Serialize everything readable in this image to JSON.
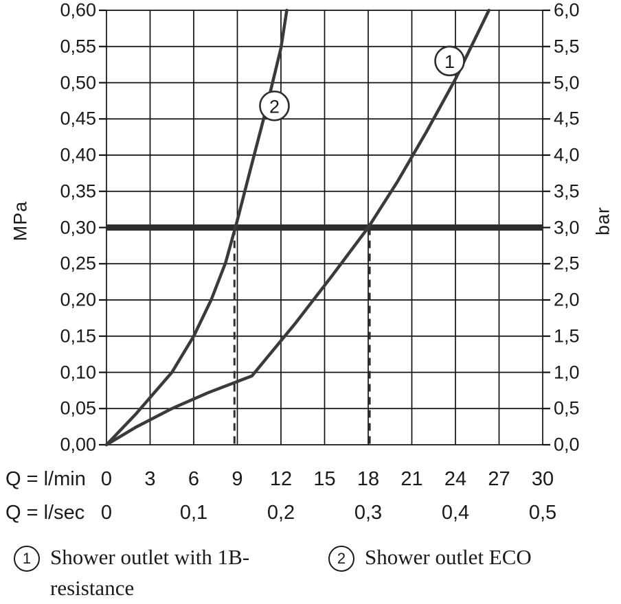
{
  "chart_data": {
    "type": "line",
    "background": "#ffffff",
    "grid_color": "#111111",
    "line_color": "#3a3a3a",
    "reference_color": "#2e2e2e",
    "x_axis": {
      "label_lmin": "Q = l/min",
      "ticks_lmin": [
        0,
        3,
        6,
        9,
        12,
        15,
        18,
        21,
        24,
        27,
        30
      ],
      "label_lsec": "Q = l/sec",
      "ticks_lsec": [
        "0",
        "0,1",
        "0,2",
        "0,3",
        "0,4",
        "0,5"
      ],
      "lsec_positions": [
        0,
        6,
        12,
        18,
        24,
        30
      ],
      "range": [
        0,
        30
      ]
    },
    "y_axis_left": {
      "label": "MPa",
      "ticks": [
        "0,00",
        "0,05",
        "0,10",
        "0,15",
        "0,20",
        "0,25",
        "0,30",
        "0,35",
        "0,40",
        "0,45",
        "0,50",
        "0,55",
        "0,60"
      ],
      "range": [
        0,
        0.6
      ]
    },
    "y_axis_right": {
      "label": "bar",
      "ticks": [
        "0,0",
        "0,5",
        "1,0",
        "1,5",
        "2,0",
        "2,5",
        "3,0",
        "3,5",
        "4,0",
        "4,5",
        "5,0",
        "5,5",
        "6,0"
      ],
      "range": [
        0,
        6
      ]
    },
    "reference_line": {
      "mpa": 0.3
    },
    "dashed_lines_lmin": [
      8.8,
      18.1
    ],
    "series": [
      {
        "name": "1",
        "label": "Shower outlet with 1B-resistance",
        "label_lines": [
          "Shower outlet with 1B-",
          "resistance"
        ],
        "marker": {
          "x": 23.6,
          "y": 0.53
        },
        "points": [
          [
            0,
            0
          ],
          [
            2,
            0.024
          ],
          [
            4.5,
            0.05
          ],
          [
            7,
            0.072
          ],
          [
            10,
            0.095
          ],
          [
            13,
            0.168
          ],
          [
            15.5,
            0.233
          ],
          [
            18,
            0.3
          ],
          [
            20,
            0.363
          ],
          [
            22,
            0.432
          ],
          [
            24,
            0.505
          ],
          [
            26.3,
            0.6
          ]
        ]
      },
      {
        "name": "2",
        "label": "Shower outlet ECO",
        "label_lines": [
          "Shower outlet ECO"
        ],
        "marker": {
          "x": 11.55,
          "y": 0.468
        },
        "points": [
          [
            0,
            0
          ],
          [
            2,
            0.042
          ],
          [
            4.5,
            0.1
          ],
          [
            6,
            0.15
          ],
          [
            7.2,
            0.2
          ],
          [
            8.2,
            0.252
          ],
          [
            9,
            0.31
          ],
          [
            10,
            0.388
          ],
          [
            11,
            0.465
          ],
          [
            12,
            0.548
          ],
          [
            12.4,
            0.6
          ]
        ]
      }
    ]
  }
}
